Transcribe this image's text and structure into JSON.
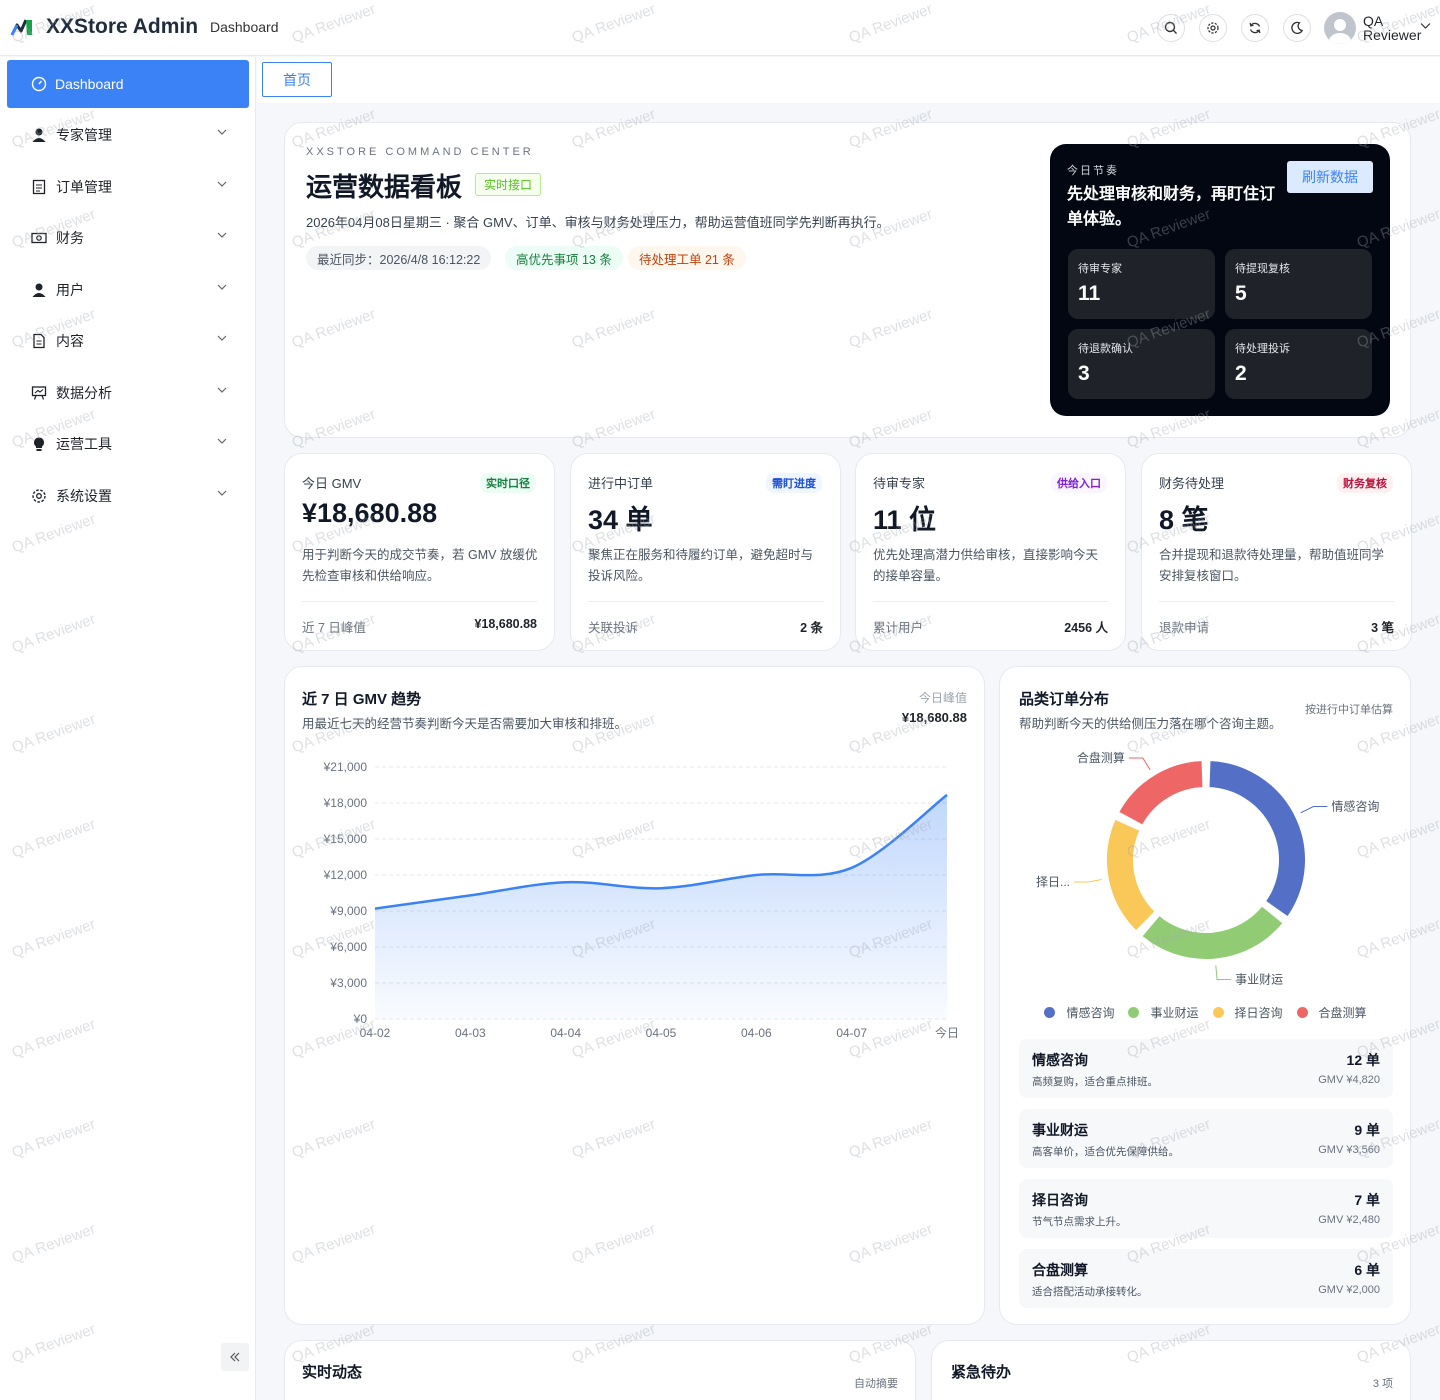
{
  "header": {
    "app_title": "XXStore Admin",
    "breadcrumb": "Dashboard",
    "user_name": "QA Reviewer"
  },
  "sidebar": {
    "items": [
      {
        "label": "Dashboard",
        "icon": "dashboard-icon",
        "active": true
      },
      {
        "label": "专家管理",
        "icon": "user-icon"
      },
      {
        "label": "订单管理",
        "icon": "document-icon"
      },
      {
        "label": "财务",
        "icon": "money-icon"
      },
      {
        "label": "用户",
        "icon": "user-icon"
      },
      {
        "label": "内容",
        "icon": "file-icon"
      },
      {
        "label": "数据分析",
        "icon": "presentation-icon"
      },
      {
        "label": "运营工具",
        "icon": "lightbulb-icon"
      },
      {
        "label": "系统设置",
        "icon": "gear-icon"
      }
    ]
  },
  "tabs": {
    "home": "首页"
  },
  "hero": {
    "eyebrow": "XXSTORE COMMAND CENTER",
    "title": "运营数据看板",
    "tag": "实时接口",
    "desc": "2026年04月08日星期三 · 聚合 GMV、订单、审核与财务处理压力，帮助运营值班同学先判断再执行。",
    "pills": {
      "sync": "最近同步：2026/4/8 16:12:22",
      "priority": "高优先事项 13 条",
      "pending": "待处理工单 21 条"
    },
    "today": {
      "eyebrow": "今日节奏",
      "title": "先处理审核和财务，再盯住订单体验。",
      "refresh": "刷新数据",
      "stats": [
        {
          "label": "待审专家",
          "value": "11"
        },
        {
          "label": "待提现复核",
          "value": "5"
        },
        {
          "label": "待退款确认",
          "value": "3"
        },
        {
          "label": "待处理投诉",
          "value": "2"
        }
      ]
    }
  },
  "kpis": [
    {
      "label": "今日 GMV",
      "badge": "实时口径",
      "value": "¥18,680.88",
      "desc": "用于判断今天的成交节奏，若 GMV 放缓优先检查审核和供给响应。",
      "foot_label": "近 7 日峰值",
      "foot_value": "¥18,680.88",
      "badge_color": "#15803d",
      "badge_bg": "#ecfdf5"
    },
    {
      "label": "进行中订单",
      "badge": "需盯进度",
      "value": "34 单",
      "desc": "聚焦正在服务和待履约订单，避免超时与投诉风险。",
      "foot_label": "关联投诉",
      "foot_value": "2 条",
      "badge_color": "#1d4ed8",
      "badge_bg": "#eff6ff"
    },
    {
      "label": "待审专家",
      "badge": "供给入口",
      "value": "11 位",
      "desc": "优先处理高潜力供给审核，直接影响今天的接单容量。",
      "foot_label": "累计用户",
      "foot_value": "2456 人",
      "badge_color": "#7e22ce",
      "badge_bg": "#faf5ff"
    },
    {
      "label": "财务待处理",
      "badge": "财务复核",
      "value": "8 笔",
      "desc": "合并提现和退款待处理量，帮助值班同学安排复核窗口。",
      "foot_label": "退款申请",
      "foot_value": "3 笔",
      "badge_color": "#be123c",
      "badge_bg": "#fff1f2"
    }
  ],
  "trend": {
    "title": "近 7 日 GMV 趋势",
    "subtitle": "用最近七天的经营节奏判断今天是否需要加大审核和排班。",
    "peak_label": "今日峰值",
    "peak_value": "¥18,680.88"
  },
  "chart_data": {
    "type": "area",
    "x": [
      "04-02",
      "04-03",
      "04-04",
      "04-05",
      "04-06",
      "04-07",
      "今日"
    ],
    "series": [
      {
        "values": [
          9200,
          10300,
          11400,
          10900,
          12000,
          12600,
          18680.88
        ]
      }
    ],
    "yticks": [
      "¥0",
      "¥3,000",
      "¥6,000",
      "¥9,000",
      "¥12,000",
      "¥15,000",
      "¥18,000",
      "¥21,000"
    ],
    "ylim": [
      0,
      21000
    ],
    "grid": true,
    "color": "#3b82f6"
  },
  "category": {
    "title": "品类订单分布",
    "subtitle": "帮助判断今天的供给侧压力落在哪个咨询主题。",
    "note": "按进行中订单估算",
    "donut_labels": [
      "情感咨询",
      "事业财运",
      "择日...",
      "合盘测算"
    ],
    "legend": [
      {
        "name": "情感咨询",
        "color": "#5470c6"
      },
      {
        "name": "事业财运",
        "color": "#91cc75"
      },
      {
        "name": "择日咨询",
        "color": "#fac858"
      },
      {
        "name": "合盘测算",
        "color": "#ee6666"
      }
    ],
    "chart_data": {
      "type": "pie",
      "categories": [
        "情感咨询",
        "事业财运",
        "择日咨询",
        "合盘测算"
      ],
      "values": [
        12,
        9,
        7,
        6
      ]
    },
    "rows": [
      {
        "name": "情感咨询",
        "desc": "高频复购，适合重点排班。",
        "count": "12 单",
        "gmv": "GMV ¥4,820"
      },
      {
        "name": "事业财运",
        "desc": "高客单价，适合优先保障供给。",
        "count": "9 单",
        "gmv": "GMV ¥3,560"
      },
      {
        "name": "择日咨询",
        "desc": "节气节点需求上升。",
        "count": "7 单",
        "gmv": "GMV ¥2,480"
      },
      {
        "name": "合盘测算",
        "desc": "适合搭配活动承接转化。",
        "count": "6 单",
        "gmv": "GMV ¥2,000"
      }
    ]
  },
  "bottom": {
    "feed_title": "实时动态",
    "feed_note": "自动摘要",
    "urgent_title": "紧急待办",
    "urgent_note": "3 项"
  },
  "watermark": "QA Reviewer"
}
